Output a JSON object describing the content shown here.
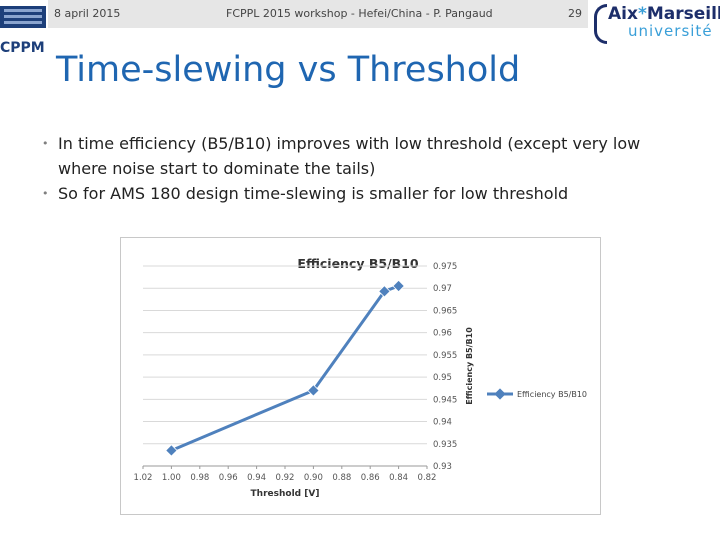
{
  "header": {
    "date": "8 april 2015",
    "event": "FCPPL 2015 workshop - Hefei/China - P. Pangaud",
    "page_number": "29",
    "left_logo_text": "CPPM",
    "right_logo_line1_a": "Aix",
    "right_logo_star": "*",
    "right_logo_line1_b": "Marseille",
    "right_logo_line2": "université"
  },
  "slide": {
    "title": "Time-slewing vs Threshold",
    "bullets": [
      "In time efficiency (B5/B10) improves with low threshold (except very low where noise start to dominate the tails)",
      "So for AMS 180 design time-slewing is smaller for low threshold"
    ]
  },
  "colors": {
    "title": "#1f66b1",
    "series": "#4f81bd",
    "header_band": "#e6e6e6"
  },
  "chart_data": {
    "type": "line",
    "title": "Efficiency B5/B10",
    "xlabel": "Threshold [V]",
    "ylabel": "Efficiency B5/B10",
    "x_reversed": true,
    "xlim": [
      1.02,
      0.82
    ],
    "ylim": [
      0.93,
      0.975
    ],
    "x_ticks": [
      "1.02",
      "1.00",
      "0.98",
      "0.96",
      "0.94",
      "0.92",
      "0.90",
      "0.88",
      "0.86",
      "0.84",
      "0.82"
    ],
    "y_ticks": [
      "0.93",
      "0.935",
      "0.94",
      "0.945",
      "0.95",
      "0.955",
      "0.96",
      "0.965",
      "0.97",
      "0.975"
    ],
    "grid": true,
    "legend_position": "right",
    "series": [
      {
        "name": "Efficiency B5/B10",
        "x": [
          1.0,
          0.9,
          0.85,
          0.84
        ],
        "y": [
          0.9335,
          0.947,
          0.9693,
          0.9705
        ]
      }
    ]
  }
}
